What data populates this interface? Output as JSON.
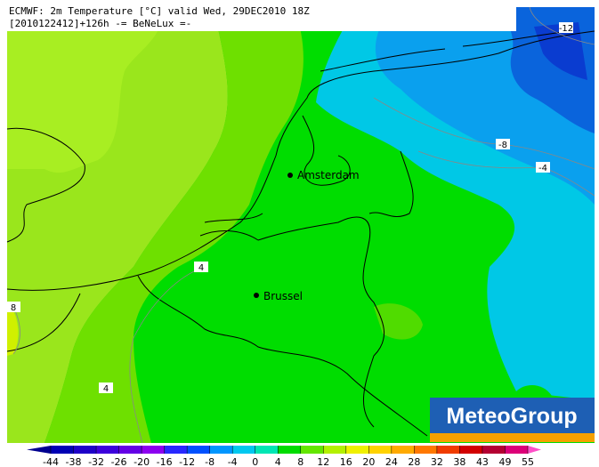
{
  "header": {
    "line1": "ECMWF: 2m Temperature [°C] valid Wed, 29DEC2010 18Z",
    "line2": "[2010122412]+126h -= BeNeLux =-"
  },
  "cities": [
    {
      "name": "Amsterdam"
    },
    {
      "name": "Brussel"
    }
  ],
  "contour_labels": [
    -12,
    -8,
    -4,
    4,
    8,
    4
  ],
  "logo": "MeteoGroup",
  "colorbar": {
    "ticks": [
      -44,
      -38,
      -32,
      -26,
      -20,
      -16,
      -12,
      -8,
      -4,
      0,
      4,
      8,
      12,
      16,
      20,
      24,
      28,
      32,
      38,
      43,
      49,
      55
    ],
    "colors": [
      "#000090",
      "#0000b4",
      "#1e00c8",
      "#3c00dc",
      "#6400e6",
      "#8c00f0",
      "#2828ff",
      "#0050ff",
      "#0096ff",
      "#00c8f0",
      "#00e6b4",
      "#00dc00",
      "#64e600",
      "#b4f000",
      "#f0f000",
      "#ffd200",
      "#ffaa00",
      "#ff7800",
      "#f03c00",
      "#d20000",
      "#b40032",
      "#dc0078",
      "#ff50c8"
    ]
  }
}
